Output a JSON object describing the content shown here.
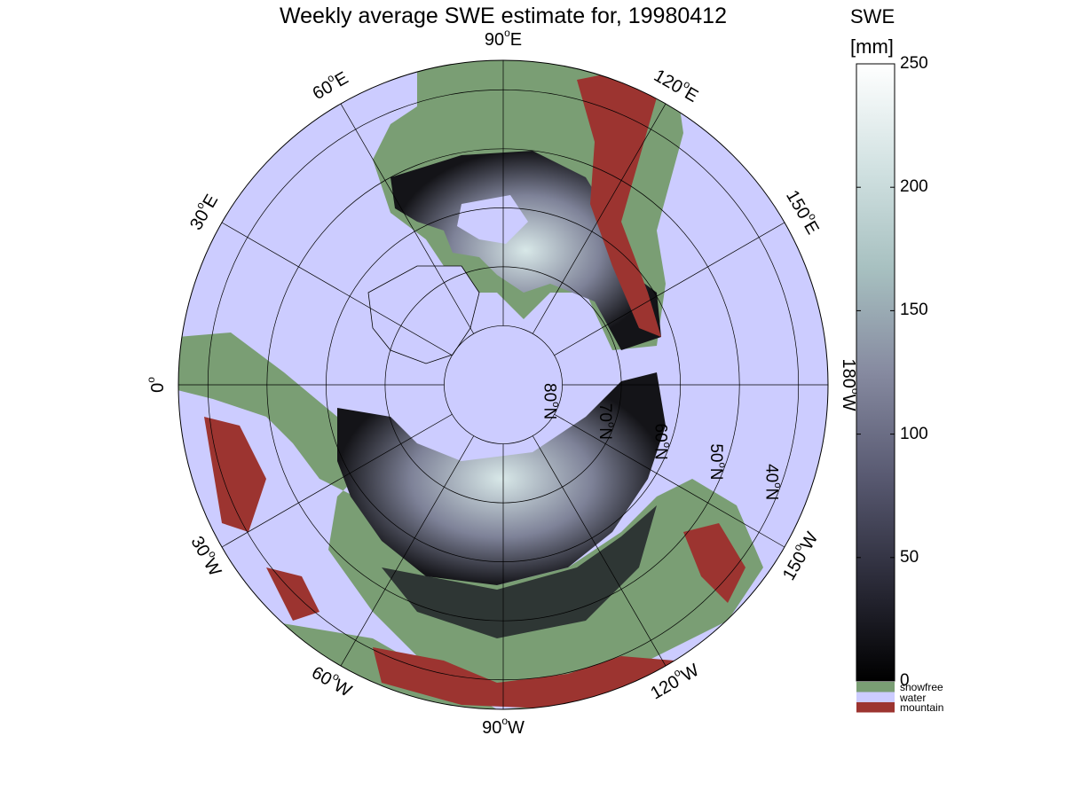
{
  "title": "Weekly average SWE estimate for, 19980412",
  "map": {
    "projection": "north polar stereographic",
    "longitude_labels": [
      {
        "base": "90",
        "sup": "o",
        "dir": "W",
        "lon": -90
      },
      {
        "base": "120",
        "sup": "o",
        "dir": "W",
        "lon": -120
      },
      {
        "base": "150",
        "sup": "o",
        "dir": "W",
        "lon": -150
      },
      {
        "base": "180",
        "sup": "o",
        "dir": "W",
        "lon": 180
      },
      {
        "base": "150",
        "sup": "o",
        "dir": "E",
        "lon": 150
      },
      {
        "base": "120",
        "sup": "o",
        "dir": "E",
        "lon": 120
      },
      {
        "base": "90",
        "sup": "o",
        "dir": "E",
        "lon": 90
      },
      {
        "base": "60",
        "sup": "o",
        "dir": "E",
        "lon": 60
      },
      {
        "base": "30",
        "sup": "o",
        "dir": "E",
        "lon": 30
      },
      {
        "base": "0",
        "sup": "o",
        "dir": "",
        "lon": 0
      },
      {
        "base": "30",
        "sup": "o",
        "dir": "W",
        "lon": -30
      },
      {
        "base": "60",
        "sup": "o",
        "dir": "W",
        "lon": -60
      }
    ],
    "latitude_labels": [
      {
        "base": "80",
        "sup": "o",
        "dir": "N",
        "lat": 80
      },
      {
        "base": "70",
        "sup": "o",
        "dir": "N",
        "lat": 70
      },
      {
        "base": "60",
        "sup": "o",
        "dir": "N",
        "lat": 60
      },
      {
        "base": "50",
        "sup": "o",
        "dir": "N",
        "lat": 50
      },
      {
        "base": "40",
        "sup": "o",
        "dir": "N",
        "lat": 40
      }
    ],
    "colors": {
      "water": "#ccccff",
      "snowfree": "#7a9e74",
      "mountain": "#9c3430",
      "grid": "#000000"
    }
  },
  "colorbar": {
    "title_line1": "SWE",
    "title_line2": "[mm]",
    "min": 0,
    "max": 250,
    "ticks": [
      "0",
      "50",
      "100",
      "150",
      "200",
      "250"
    ],
    "gradient": [
      "#000000",
      "#2c2c3a",
      "#595a72",
      "#868aa0",
      "#a7c0c0",
      "#d2e2e2",
      "#ffffff"
    ],
    "legend": [
      {
        "label": "snowfree",
        "color": "#7a9e74"
      },
      {
        "label": "water",
        "color": "#ccccff"
      },
      {
        "label": "mountain",
        "color": "#9c3430"
      }
    ]
  }
}
